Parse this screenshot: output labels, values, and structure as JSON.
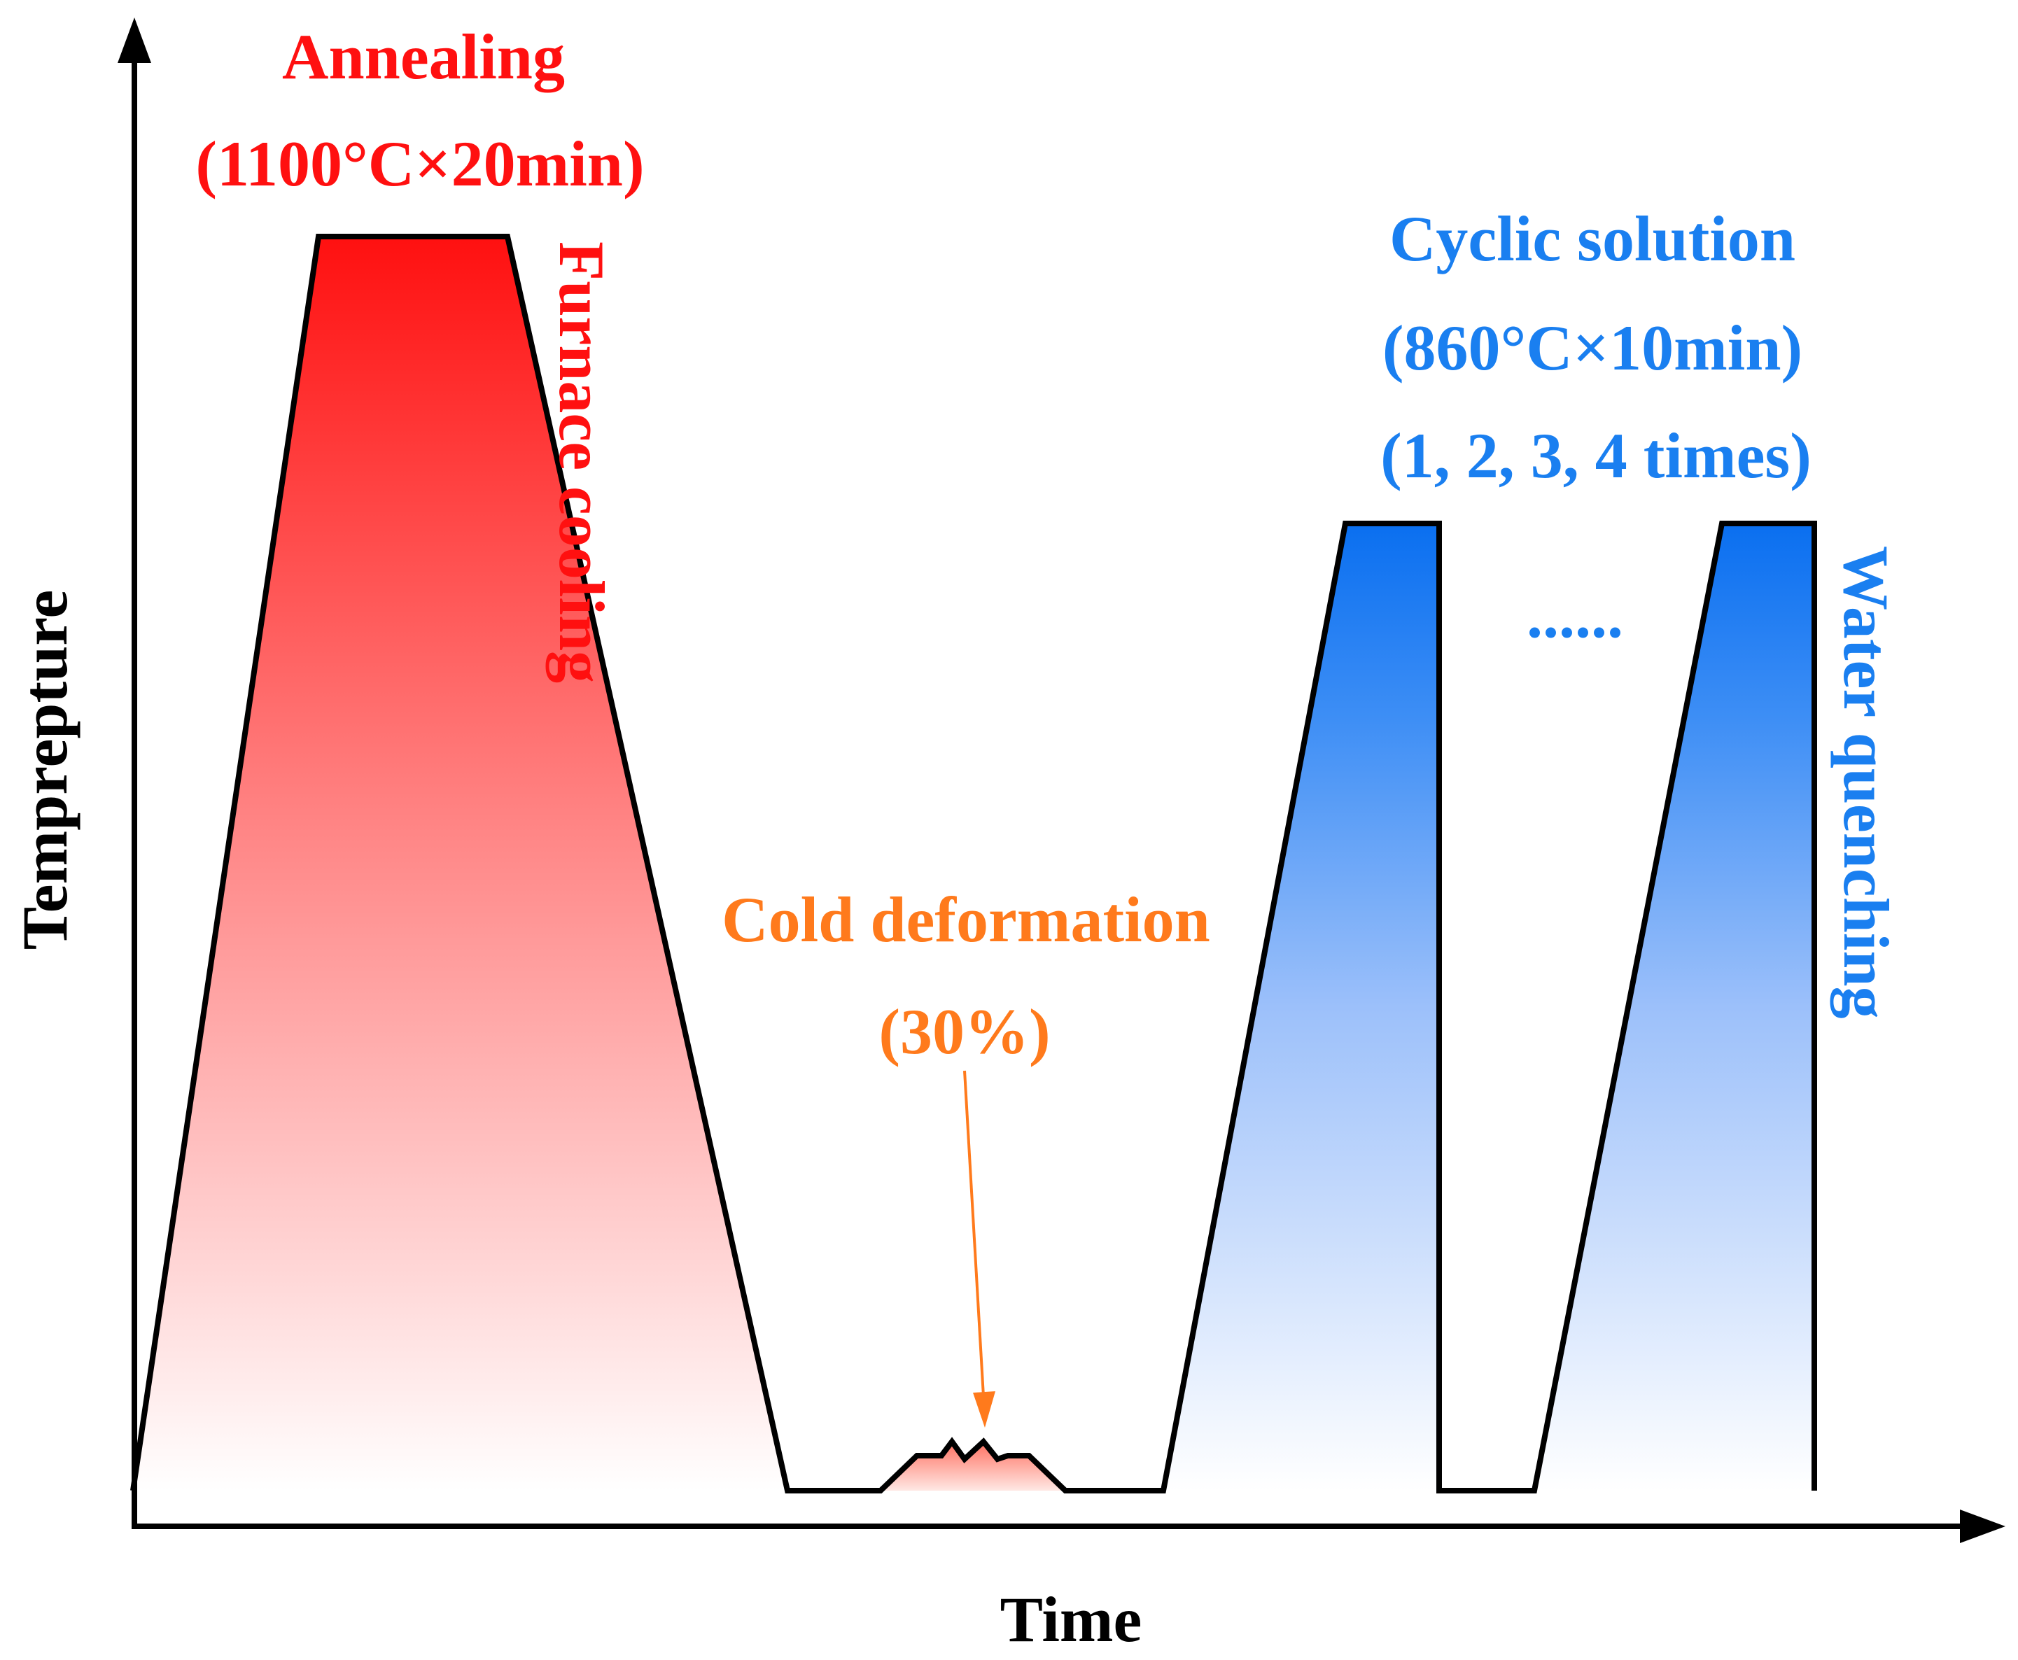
{
  "axes": {
    "y_label": "Temprepture",
    "x_label": "Time"
  },
  "stages": {
    "annealing": {
      "title": "Annealing",
      "condition": "(1100°C×20min)",
      "cooling": "Furnace cooling"
    },
    "cold_deformation": {
      "title": "Cold deformation",
      "amount": "(30%)"
    },
    "cyclic_solution": {
      "title": "Cyclic solution",
      "condition": "(860°C×10min)",
      "repeats": "(1, 2, 3, 4 times)",
      "ellipsis": "......",
      "quench": "Water quenching"
    }
  },
  "colors": {
    "annealing": "#ff1010",
    "deformation": "#ff7a1c",
    "solution": "#1a7ff0",
    "line": "#000000"
  }
}
